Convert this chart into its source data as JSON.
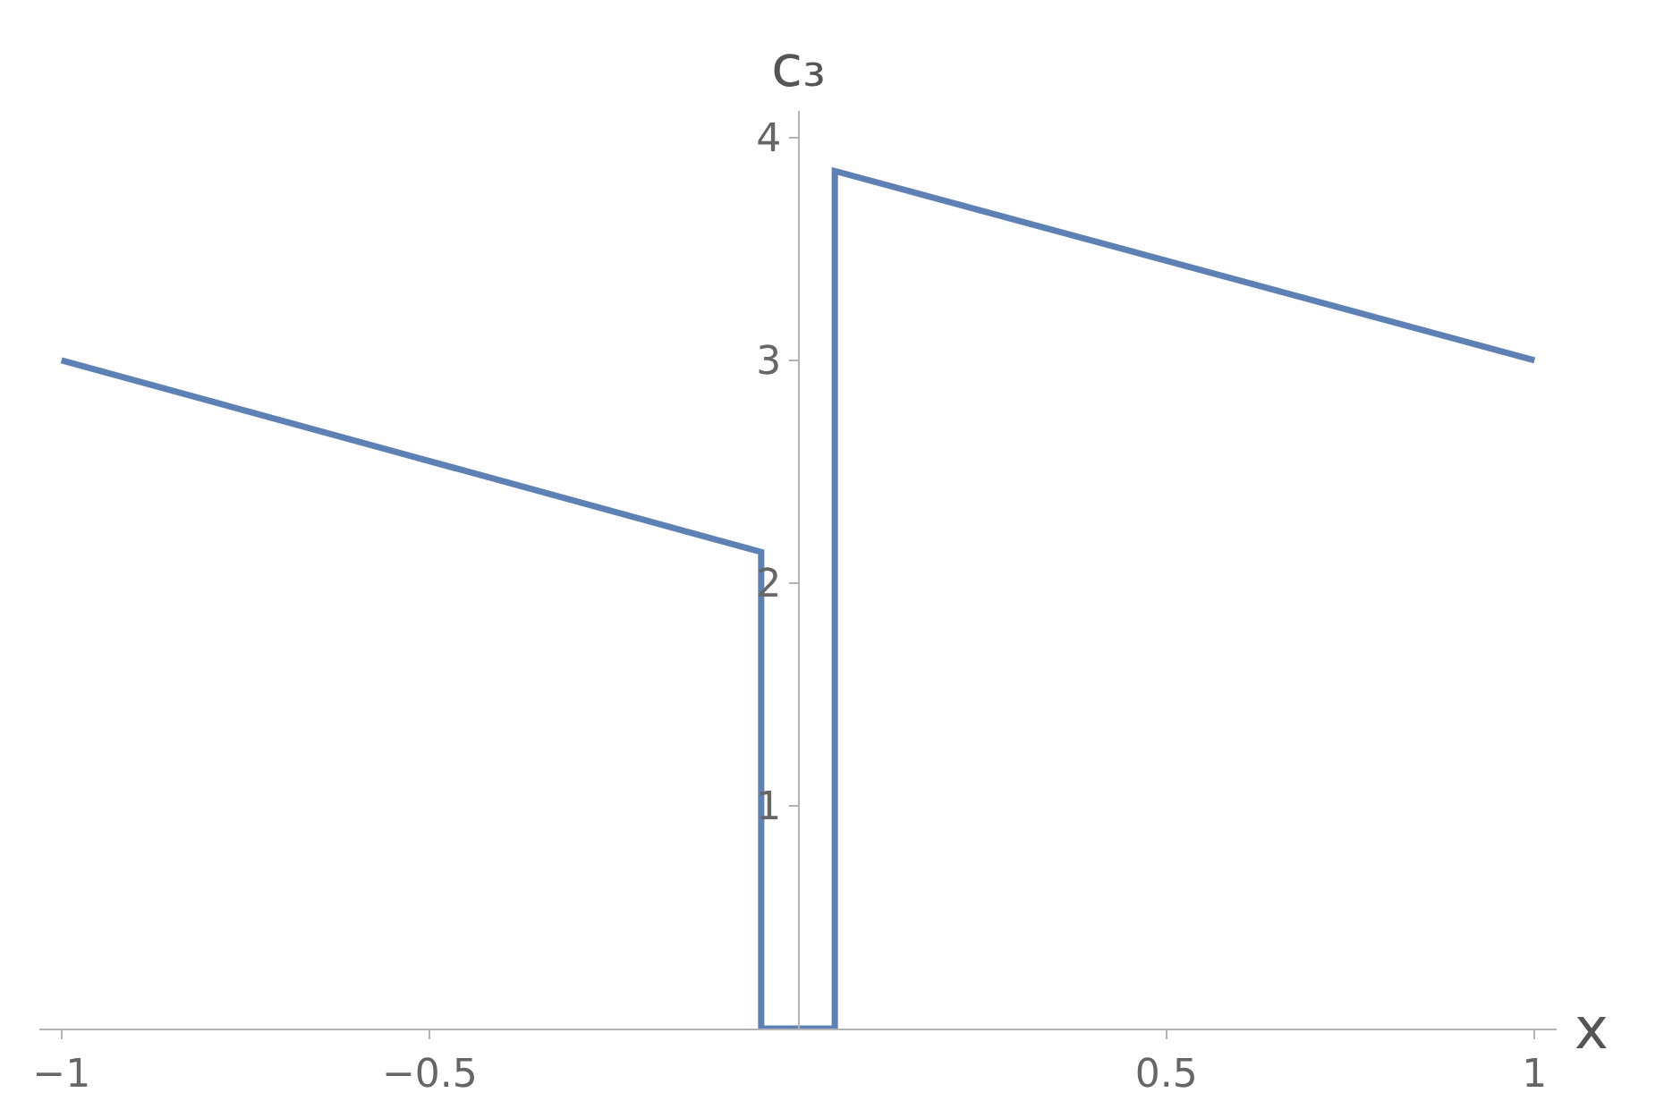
{
  "chart_data": {
    "type": "line",
    "xlabel": "x",
    "ylabel": "c₃",
    "x": [
      -1,
      -0.05,
      -0.05,
      0.05,
      0.05,
      1
    ],
    "series": [
      {
        "color": "#5e81b5",
        "values": [
          3,
          2.14,
          0,
          0,
          3.85,
          3
        ]
      }
    ],
    "xlim": [
      -1.03,
      1.03
    ],
    "ylim": [
      0,
      4.12
    ],
    "xticks": [
      {
        "value": -1,
        "label": "−1"
      },
      {
        "value": -0.5,
        "label": "−0.5"
      },
      0.5,
      1
    ],
    "yticks": [
      1,
      2,
      3,
      4
    ],
    "legend": false,
    "marker": "none",
    "line_style": "solid"
  }
}
